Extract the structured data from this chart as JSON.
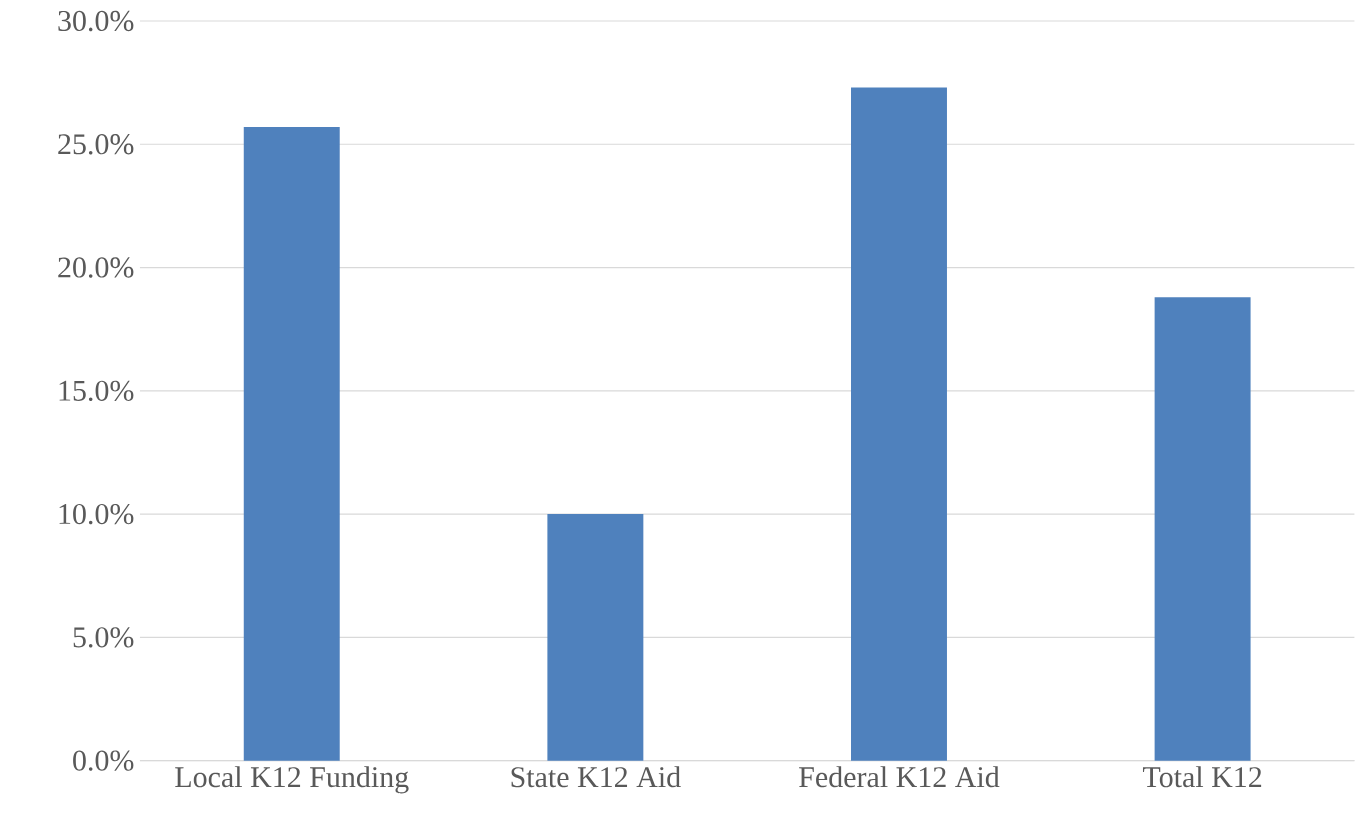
{
  "chart_data": {
    "type": "bar",
    "categories": [
      "Local K12 Funding",
      "State K12 Aid",
      "Federal K12 Aid",
      "Total K12"
    ],
    "values": [
      25.7,
      10.0,
      27.3,
      18.8
    ],
    "color": "#4f81bd",
    "ylim": [
      0,
      30
    ],
    "yticks": [
      {
        "value": 0,
        "label": "0.0%"
      },
      {
        "value": 5,
        "label": "5.0%"
      },
      {
        "value": 10,
        "label": "10.0%"
      },
      {
        "value": 15,
        "label": "15.0%"
      },
      {
        "value": 20,
        "label": "20.0%"
      },
      {
        "value": 25,
        "label": "25.0%"
      },
      {
        "value": 30,
        "label": "30.0%"
      }
    ],
    "grid": "y"
  }
}
